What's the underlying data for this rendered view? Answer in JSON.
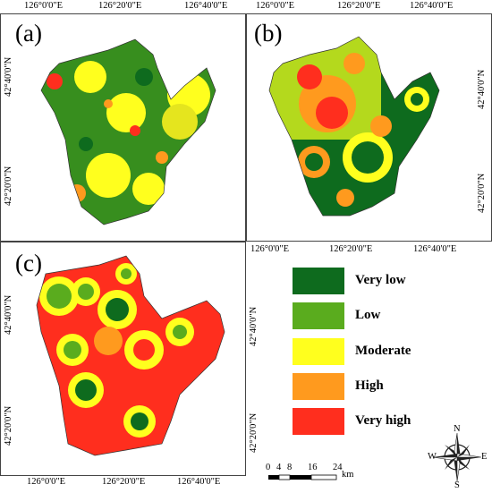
{
  "panels": [
    {
      "label": "(a)",
      "top_ticks": [
        "126°0'0\"E",
        "126°20'0\"E",
        "126°40'0\"E"
      ],
      "left_ticks": [
        "42°40'0\"N",
        "42°20'0\"N"
      ]
    },
    {
      "label": "(b)",
      "top_ticks": [
        "126°0'0\"E",
        "126°20'0\"E",
        "126°40'0\"E"
      ],
      "bottom_ticks": [
        "126°0'0\"E",
        "126°20'0\"E",
        "126°40'0\"E"
      ],
      "right_ticks": [
        "42°40'0\"N",
        "42°20'0\"N"
      ]
    },
    {
      "label": "(c)",
      "bottom_ticks": [
        "126°0'0\"E",
        "126°20'0\"E",
        "126°40'0\"E"
      ],
      "left_ticks": [
        "42°40'0\"N",
        "42°20'0\"N"
      ],
      "right_ticks": [
        "42°40'0\"N",
        "42°20'0\"N"
      ]
    }
  ],
  "legend": [
    {
      "label": "Very low",
      "color": "#0e6b1e"
    },
    {
      "label": "Low",
      "color": "#5aac1e"
    },
    {
      "label": "Moderate",
      "color": "#ffff1e"
    },
    {
      "label": "High",
      "color": "#ff9a1e"
    },
    {
      "label": "Very high",
      "color": "#ff2e1e"
    }
  ],
  "scale_bar": {
    "ticks": [
      "0",
      "4",
      "8",
      "16",
      "24"
    ],
    "unit": "km"
  },
  "north_arrow": {
    "n": "N",
    "s": "S",
    "e": "E",
    "w": "W"
  }
}
